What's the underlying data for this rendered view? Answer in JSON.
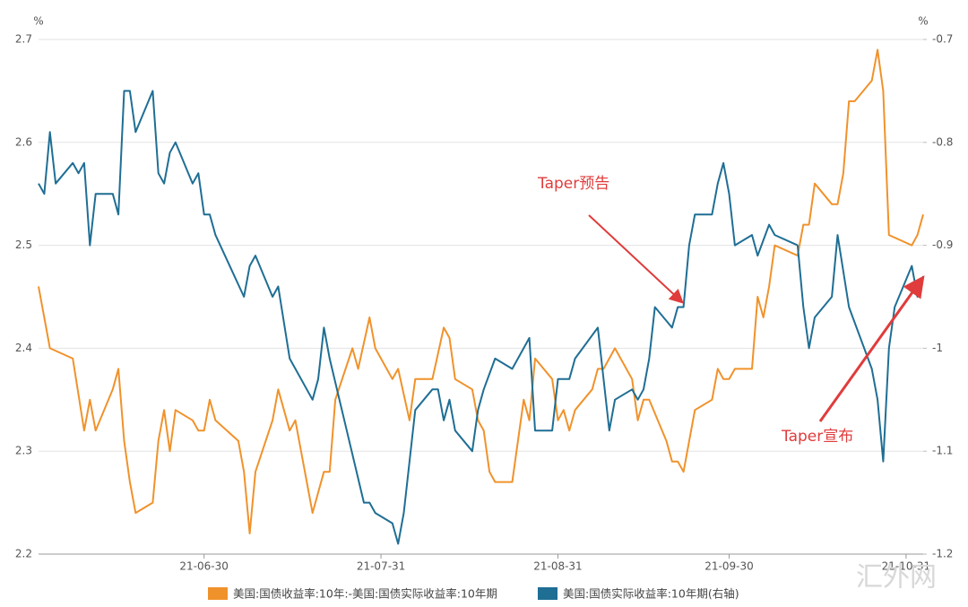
{
  "chart_data": {
    "type": "line",
    "y_unit": "%",
    "y2_unit": "%",
    "xlim": [
      "21-06-01",
      "21-11-03"
    ],
    "xticks": [
      "21-06-30",
      "21-07-31",
      "21-08-31",
      "21-09-30",
      "21-10-31"
    ],
    "ylim": [
      2.2,
      2.7
    ],
    "yticks": [
      2.2,
      2.3,
      2.4,
      2.5,
      2.6,
      2.7
    ],
    "y2lim": [
      -1.2,
      -0.7
    ],
    "y2ticks": [
      -1.2,
      -1.1,
      -1,
      -0.9,
      -0.8,
      -0.7
    ],
    "grid": true,
    "legend": "bottom",
    "series": [
      {
        "name": "美国:国债收益率:10年:-美国:国债实际收益率:10年期",
        "color": "#f0922b",
        "x": [
          "21-06-01",
          "21-06-03",
          "21-06-07",
          "21-06-09",
          "21-06-10",
          "21-06-11",
          "21-06-14",
          "21-06-15",
          "21-06-16",
          "21-06-17",
          "21-06-18",
          "21-06-21",
          "21-06-22",
          "21-06-23",
          "21-06-24",
          "21-06-25",
          "21-06-28",
          "21-06-29",
          "21-06-30",
          "21-07-01",
          "21-07-02",
          "21-07-06",
          "21-07-07",
          "21-07-08",
          "21-07-09",
          "21-07-12",
          "21-07-13",
          "21-07-15",
          "21-07-16",
          "21-07-19",
          "21-07-21",
          "21-07-22",
          "21-07-23",
          "21-07-26",
          "21-07-27",
          "21-07-29",
          "21-07-30",
          "21-08-02",
          "21-08-03",
          "21-08-05",
          "21-08-06",
          "21-08-09",
          "21-08-11",
          "21-08-12",
          "21-08-13",
          "21-08-16",
          "21-08-17",
          "21-08-18",
          "21-08-19",
          "21-08-20",
          "21-08-23",
          "21-08-24",
          "21-08-25",
          "21-08-26",
          "21-08-27",
          "21-08-30",
          "21-08-31",
          "21-09-01",
          "21-09-02",
          "21-09-03",
          "21-09-06",
          "21-09-07",
          "21-09-08",
          "21-09-10",
          "21-09-13",
          "21-09-14",
          "21-09-15",
          "21-09-16",
          "21-09-19",
          "21-09-20",
          "21-09-21",
          "21-09-22",
          "21-09-24",
          "21-09-27",
          "21-09-28",
          "21-09-29",
          "21-09-30",
          "21-10-01",
          "21-10-04",
          "21-10-05",
          "21-10-06",
          "21-10-07",
          "21-10-08",
          "21-10-12",
          "21-10-13",
          "21-10-14",
          "21-10-15",
          "21-10-18",
          "21-10-19",
          "21-10-20",
          "21-10-21",
          "21-10-22",
          "21-10-25",
          "21-10-26",
          "21-10-27",
          "21-10-28",
          "21-11-01",
          "21-11-02",
          "21-11-03"
        ],
        "values": [
          2.46,
          2.4,
          2.39,
          2.32,
          2.35,
          2.32,
          2.36,
          2.38,
          2.31,
          2.27,
          2.24,
          2.25,
          2.31,
          2.34,
          2.3,
          2.34,
          2.33,
          2.32,
          2.32,
          2.35,
          2.33,
          2.31,
          2.28,
          2.22,
          2.28,
          2.33,
          2.36,
          2.32,
          2.33,
          2.24,
          2.28,
          2.28,
          2.35,
          2.4,
          2.38,
          2.43,
          2.4,
          2.37,
          2.38,
          2.33,
          2.37,
          2.37,
          2.42,
          2.41,
          2.37,
          2.36,
          2.33,
          2.32,
          2.28,
          2.27,
          2.27,
          2.31,
          2.35,
          2.33,
          2.39,
          2.37,
          2.33,
          2.34,
          2.32,
          2.34,
          2.36,
          2.38,
          2.38,
          2.4,
          2.37,
          2.33,
          2.35,
          2.35,
          2.31,
          2.29,
          2.29,
          2.28,
          2.34,
          2.35,
          2.38,
          2.37,
          2.37,
          2.38,
          2.38,
          2.45,
          2.43,
          2.46,
          2.5,
          2.49,
          2.52,
          2.52,
          2.56,
          2.54,
          2.54,
          2.57,
          2.64,
          2.64,
          2.66,
          2.69,
          2.65,
          2.51,
          2.5,
          2.51,
          2.53
        ]
      },
      {
        "name": "美国:国债实际收益率:10年期(右轴)",
        "color": "#1f6e94",
        "axis": "y2",
        "x": [
          "21-06-01",
          "21-06-02",
          "21-06-03",
          "21-06-04",
          "21-06-07",
          "21-06-08",
          "21-06-09",
          "21-06-10",
          "21-06-11",
          "21-06-14",
          "21-06-15",
          "21-06-16",
          "21-06-17",
          "21-06-18",
          "21-06-21",
          "21-06-22",
          "21-06-23",
          "21-06-24",
          "21-06-25",
          "21-06-28",
          "21-06-29",
          "21-06-30",
          "21-07-01",
          "21-07-02",
          "21-07-07",
          "21-07-08",
          "21-07-09",
          "21-07-12",
          "21-07-13",
          "21-07-15",
          "21-07-19",
          "21-07-20",
          "21-07-21",
          "21-07-22",
          "21-07-28",
          "21-07-29",
          "21-07-30",
          "21-08-02",
          "21-08-03",
          "21-08-04",
          "21-08-06",
          "21-08-09",
          "21-08-10",
          "21-08-11",
          "21-08-12",
          "21-08-13",
          "21-08-16",
          "21-08-17",
          "21-08-18",
          "21-08-20",
          "21-08-23",
          "21-08-26",
          "21-08-27",
          "21-08-30",
          "21-08-31",
          "21-09-02",
          "21-09-03",
          "21-09-07",
          "21-09-09",
          "21-09-10",
          "21-09-13",
          "21-09-14",
          "21-09-15",
          "21-09-16",
          "21-09-17",
          "21-09-20",
          "21-09-21",
          "21-09-22",
          "21-09-23",
          "21-09-24",
          "21-09-27",
          "21-09-28",
          "21-09-29",
          "21-09-30",
          "21-10-01",
          "21-10-04",
          "21-10-05",
          "21-10-07",
          "21-10-08",
          "21-10-12",
          "21-10-13",
          "21-10-14",
          "21-10-15",
          "21-10-18",
          "21-10-19",
          "21-10-21",
          "21-10-25",
          "21-10-26",
          "21-10-27",
          "21-10-28",
          "21-10-29",
          "21-11-01",
          "21-11-02",
          "21-11-03"
        ],
        "values": [
          -0.84,
          -0.85,
          -0.79,
          -0.84,
          -0.82,
          -0.83,
          -0.82,
          -0.9,
          -0.85,
          -0.85,
          -0.87,
          -0.75,
          -0.75,
          -0.79,
          -0.75,
          -0.83,
          -0.84,
          -0.81,
          -0.8,
          -0.84,
          -0.83,
          -0.87,
          -0.87,
          -0.89,
          -0.95,
          -0.92,
          -0.91,
          -0.95,
          -0.94,
          -1.01,
          -1.05,
          -1.03,
          -0.98,
          -1.01,
          -1.15,
          -1.15,
          -1.16,
          -1.17,
          -1.19,
          -1.16,
          -1.06,
          -1.04,
          -1.04,
          -1.07,
          -1.05,
          -1.08,
          -1.1,
          -1.06,
          -1.04,
          -1.01,
          -1.02,
          -0.99,
          -1.08,
          -1.08,
          -1.03,
          -1.03,
          -1.01,
          -0.98,
          -1.08,
          -1.05,
          -1.04,
          -1.05,
          -1.04,
          -1.01,
          -0.96,
          -0.98,
          -0.96,
          -0.96,
          -0.9,
          -0.87,
          -0.87,
          -0.84,
          -0.82,
          -0.85,
          -0.9,
          -0.89,
          -0.91,
          -0.88,
          -0.89,
          -0.9,
          -0.96,
          -1.0,
          -0.97,
          -0.95,
          -0.89,
          -0.96,
          -1.02,
          -1.05,
          -1.11,
          -1.0,
          -0.96,
          -0.92,
          -0.95,
          -0.93
        ]
      }
    ],
    "annotations": [
      {
        "text": "Taper预告",
        "color": "#e03c3c"
      },
      {
        "text": "Taper宣布",
        "color": "#e03c3c"
      }
    ],
    "watermark": "汇外网"
  }
}
